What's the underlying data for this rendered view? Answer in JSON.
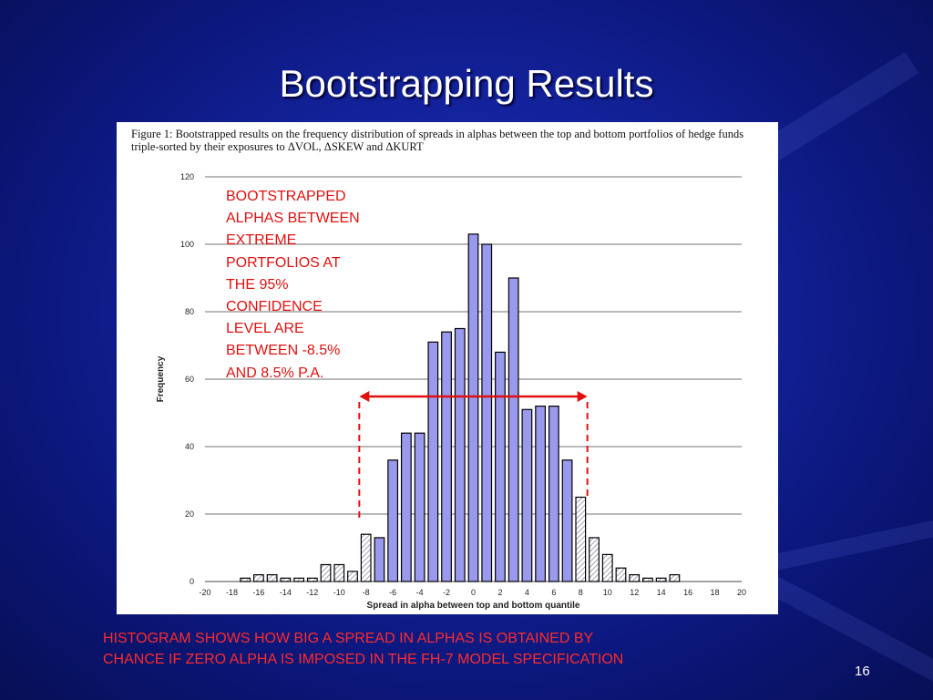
{
  "slide": {
    "title": "Bootstrapping Results",
    "page_number": "16",
    "footnote": "HISTOGRAM SHOWS HOW BIG A SPREAD IN ALPHAS IS OBTAINED BY\nCHANCE  IF ZERO ALPHA IS IMPOSED IN THE FH-7 MODEL SPECIFICATION",
    "annotation": "BOOTSTRAPPED\nALPHAS BETWEEN\nEXTREME\nPORTFOLIOS AT\nTHE 95%\nCONFIDENCE\nLEVEL ARE\nBETWEEN -8.5%\nAND 8.5% P.A.",
    "colors": {
      "background": "#1424a0",
      "title": "#ffffff",
      "annotation": "#e01010",
      "bar_fill": "#9999ee",
      "bar_stroke": "#000000",
      "arrow": "#e01010"
    }
  },
  "chart_data": {
    "type": "bar",
    "title": "Figure 1:  Bootstrapped results on the frequency distribution of spreads in alphas between the top and bottom portfolios of hedge funds triple-sorted by their exposures to ΔVOL, ΔSKEW and ΔKURT",
    "xlabel": "Spread in alpha between top and bottom quantile",
    "ylabel": "Frequency",
    "xlim": [
      -20,
      20
    ],
    "ylim": [
      0,
      120
    ],
    "xticks": [
      -20,
      -18,
      -16,
      -14,
      -12,
      -10,
      -8,
      -6,
      -4,
      -2,
      0,
      2,
      4,
      6,
      8,
      10,
      12,
      14,
      16,
      18,
      20
    ],
    "yticks": [
      0,
      20,
      40,
      60,
      80,
      100,
      120
    ],
    "grid": true,
    "confidence_interval": [
      -8.5,
      8.5
    ],
    "x": [
      -17,
      -16,
      -15,
      -14,
      -13,
      -12,
      -11,
      -10,
      -9,
      -8,
      -7,
      -6,
      -5,
      -4,
      -3,
      -2,
      -1,
      0,
      1,
      2,
      3,
      4,
      5,
      6,
      7,
      8,
      9,
      10,
      11,
      12,
      13,
      14,
      15
    ],
    "values": [
      1,
      2,
      2,
      1,
      1,
      1,
      5,
      5,
      3,
      14,
      13,
      36,
      44,
      44,
      71,
      74,
      75,
      103,
      100,
      68,
      90,
      51,
      52,
      52,
      36,
      25,
      13,
      8,
      4,
      2,
      1,
      1,
      2
    ],
    "hatched": [
      true,
      true,
      true,
      true,
      true,
      true,
      true,
      true,
      true,
      true,
      false,
      false,
      false,
      false,
      false,
      false,
      false,
      false,
      false,
      false,
      false,
      false,
      false,
      false,
      false,
      true,
      true,
      true,
      true,
      true,
      true,
      true,
      true
    ]
  }
}
